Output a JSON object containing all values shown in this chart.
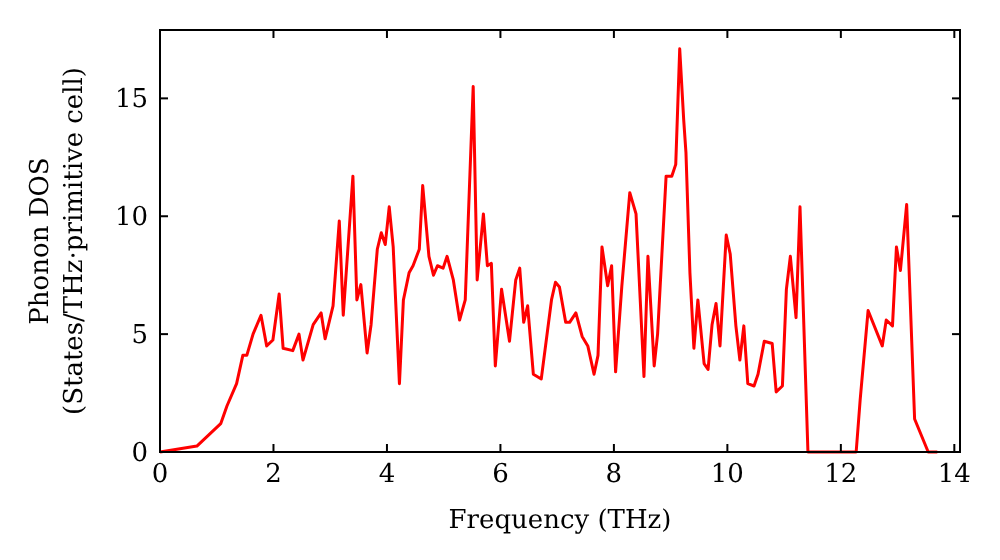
{
  "chart_data": {
    "type": "line",
    "xlabel": "Frequency (THz)",
    "ylabel": "Phonon DOS\n(States/THz·primitive cell)",
    "xlim": [
      0,
      14.1
    ],
    "ylim": [
      0,
      17.9
    ],
    "xticks": [
      0,
      2,
      4,
      6,
      8,
      10,
      12,
      14
    ],
    "yticks": [
      0,
      5,
      10,
      15
    ],
    "grid": false,
    "marker": "none",
    "line_style": "solid",
    "series": [
      {
        "color": "#ff0000",
        "x": [
          0,
          0.65,
          1.07,
          1.18,
          1.35,
          1.46,
          1.53,
          1.64,
          1.78,
          1.88,
          1.99,
          2.1,
          2.17,
          2.34,
          2.45,
          2.52,
          2.7,
          2.84,
          2.91,
          3.05,
          3.16,
          3.23,
          3.4,
          3.47,
          3.54,
          3.65,
          3.72,
          3.83,
          3.9,
          3.97,
          4.04,
          4.11,
          4.22,
          4.29,
          4.39,
          4.46,
          4.57,
          4.63,
          4.74,
          4.82,
          4.89,
          4.99,
          5.06,
          5.17,
          5.28,
          5.38,
          5.52,
          5.59,
          5.7,
          5.77,
          5.84,
          5.91,
          6.02,
          6.16,
          6.27,
          6.34,
          6.41,
          6.48,
          6.58,
          6.72,
          6.9,
          6.97,
          7.04,
          7.15,
          7.22,
          7.33,
          7.44,
          7.54,
          7.65,
          7.72,
          7.79,
          7.89,
          7.96,
          8.03,
          8.14,
          8.28,
          8.39,
          8.53,
          8.6,
          8.71,
          8.77,
          8.92,
          9.02,
          9.09,
          9.16,
          9.23,
          9.27,
          9.34,
          9.41,
          9.48,
          9.59,
          9.66,
          9.73,
          9.8,
          9.87,
          9.98,
          10.05,
          10.15,
          10.22,
          10.29,
          10.36,
          10.47,
          10.54,
          10.65,
          10.79,
          10.86,
          10.97,
          11.04,
          11.11,
          11.21,
          11.28,
          11.42,
          12.27,
          12.34,
          12.48,
          12.73,
          12.8,
          12.91,
          12.98,
          13.05,
          13.16,
          13.3,
          13.54,
          13.7
        ],
        "values": [
          0,
          0.25,
          1.2,
          1.95,
          2.9,
          4.1,
          4.1,
          5,
          5.8,
          4.5,
          4.75,
          6.7,
          4.4,
          4.3,
          5,
          3.9,
          5.4,
          5.9,
          4.8,
          6.2,
          9.8,
          5.8,
          11.7,
          6.45,
          7.1,
          4.2,
          5.4,
          8.6,
          9.3,
          8.8,
          10.4,
          8.7,
          2.9,
          6.45,
          7.6,
          7.9,
          8.6,
          11.3,
          8.3,
          7.5,
          7.9,
          7.8,
          8.3,
          7.3,
          5.6,
          6.45,
          15.5,
          7.3,
          10.1,
          7.9,
          8,
          3.65,
          6.9,
          4.7,
          7.3,
          7.8,
          5.5,
          6.2,
          3.3,
          3.1,
          6.45,
          7.2,
          7,
          5.5,
          5.5,
          5.9,
          4.9,
          4.5,
          3.3,
          4.1,
          8.7,
          7.05,
          7.9,
          3.4,
          7.05,
          11,
          10.1,
          3.2,
          8.3,
          3.65,
          5,
          11.7,
          11.7,
          12.2,
          17.1,
          14.1,
          12.7,
          7.6,
          4.4,
          6.45,
          3.75,
          3.5,
          5.4,
          6.3,
          4.5,
          9.2,
          8.4,
          5.35,
          3.9,
          5.35,
          2.9,
          2.8,
          3.3,
          4.7,
          4.6,
          2.55,
          2.8,
          6.9,
          8.3,
          5.7,
          10.4,
          0,
          0,
          2.2,
          6,
          4.5,
          5.6,
          5.35,
          8.7,
          7.7,
          10.5,
          1.4,
          0,
          0
        ]
      }
    ]
  }
}
